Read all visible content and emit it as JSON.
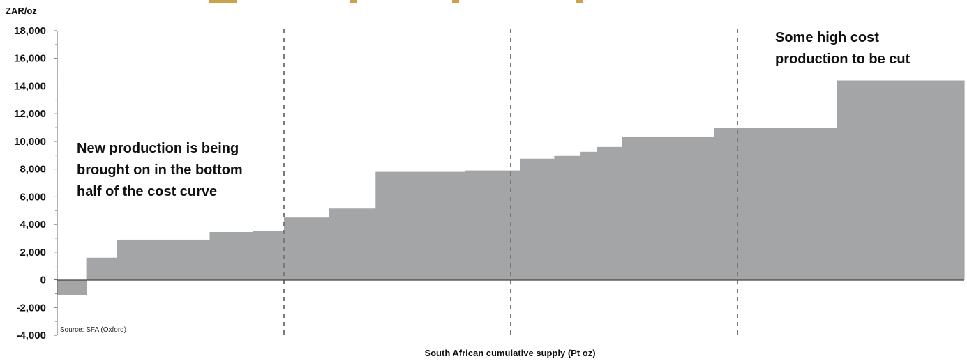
{
  "chart_data": {
    "type": "bar",
    "subtype": "cost-curve-step",
    "title": "",
    "unit_label": "ZAR/oz",
    "xlabel": "South African cumulative supply (Pt oz)",
    "ylabel": "",
    "ylim": [
      -4000,
      18000
    ],
    "y_ticks": [
      18000,
      16000,
      14000,
      12000,
      10000,
      8000,
      6000,
      4000,
      2000,
      0,
      -2000,
      -4000
    ],
    "y_tick_labels": [
      "18,000",
      "16,000",
      "14,000",
      "12,000",
      "10,000",
      "8,000",
      "6,000",
      "4,000",
      "2,000",
      "0",
      "-2,000",
      "-4,000"
    ],
    "xlim": [
      0,
      100
    ],
    "segments": [
      {
        "x0": 0.0,
        "x1": 3.2,
        "value": -1100
      },
      {
        "x0": 3.2,
        "x1": 6.6,
        "value": 1600
      },
      {
        "x0": 6.6,
        "x1": 16.8,
        "value": 2900
      },
      {
        "x0": 16.8,
        "x1": 21.6,
        "value": 3450
      },
      {
        "x0": 21.6,
        "x1": 25.0,
        "value": 3550
      },
      {
        "x0": 25.0,
        "x1": 30.0,
        "value": 4500
      },
      {
        "x0": 30.0,
        "x1": 35.1,
        "value": 5150
      },
      {
        "x0": 35.1,
        "x1": 45.0,
        "value": 7800
      },
      {
        "x0": 45.0,
        "x1": 51.0,
        "value": 7900
      },
      {
        "x0": 51.0,
        "x1": 54.8,
        "value": 8750
      },
      {
        "x0": 54.8,
        "x1": 57.7,
        "value": 8950
      },
      {
        "x0": 57.7,
        "x1": 59.5,
        "value": 9250
      },
      {
        "x0": 59.5,
        "x1": 62.3,
        "value": 9600
      },
      {
        "x0": 62.3,
        "x1": 72.4,
        "value": 10350
      },
      {
        "x0": 72.4,
        "x1": 86.0,
        "value": 11000
      },
      {
        "x0": 86.0,
        "x1": 100.0,
        "value": 14400
      }
    ],
    "dividers_x": [
      25,
      50,
      75
    ],
    "bar_color": "#a3a5a6",
    "divider_color": "#7a7a7a",
    "grid": false,
    "legend": "none",
    "annotations": [
      {
        "lines": [
          "New production is being",
          "brought on in the bottom",
          "half of the cost curve"
        ],
        "placement": "left"
      },
      {
        "lines": [
          "Some high cost",
          "production to be cut"
        ],
        "placement": "top-right"
      }
    ],
    "source": "Source: SFA (Oxford)"
  }
}
